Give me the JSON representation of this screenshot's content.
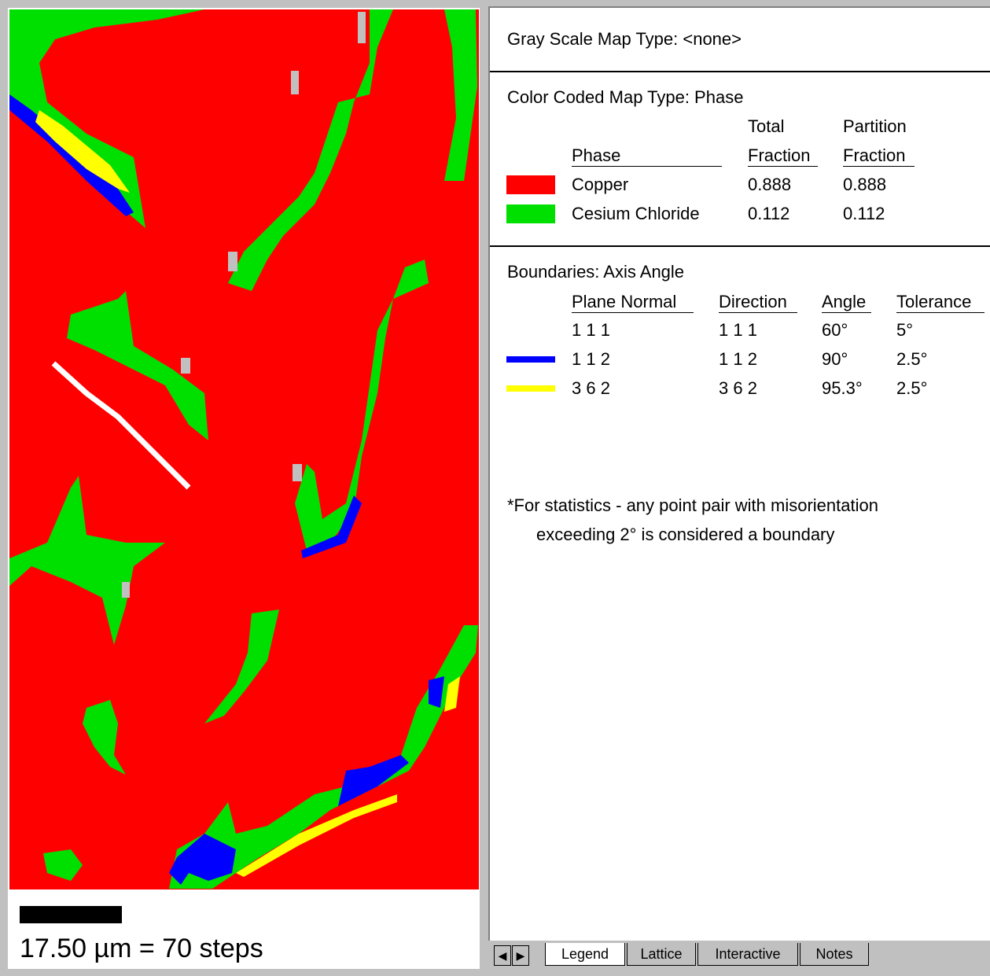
{
  "gray_scale_map_type": "Gray Scale Map Type: <none>",
  "phase_section": {
    "title": "Color Coded Map Type: Phase",
    "headers": {
      "phase": "Phase",
      "total_fraction": [
        "Total",
        "Fraction"
      ],
      "partition_fraction": [
        "Partition",
        "Fraction"
      ]
    },
    "rows": [
      {
        "color": "#ff0000",
        "name": "Copper",
        "total_fraction": "0.888",
        "partition_fraction": "0.888"
      },
      {
        "color": "#00e000",
        "name": "Cesium Chloride",
        "total_fraction": "0.112",
        "partition_fraction": "0.112"
      }
    ]
  },
  "boundaries": {
    "title": "Boundaries: Axis Angle",
    "headers": [
      "Plane Normal",
      "Direction",
      "Angle",
      "Tolerance"
    ],
    "rows": [
      {
        "plane_normal": "1 1 1",
        "direction": "1 1 1",
        "angle": "60°",
        "tolerance": "5°"
      },
      {
        "color": "#0000ff",
        "plane_normal": "1 1 2",
        "direction": "1 1 2",
        "angle": "90°",
        "tolerance": "2.5°"
      },
      {
        "color": "#ffff00",
        "plane_normal": "3 6 2",
        "direction": "3 6 2",
        "angle": "95.3°",
        "tolerance": "2.5°"
      }
    ]
  },
  "note": [
    "*For statistics - any point pair with misorientation",
    "exceeding 2° is considered a boundary"
  ],
  "scale_bar": "17.50 µm = 70 steps",
  "tabs": [
    "Legend",
    "Lattice",
    "Interactive",
    "Notes"
  ]
}
